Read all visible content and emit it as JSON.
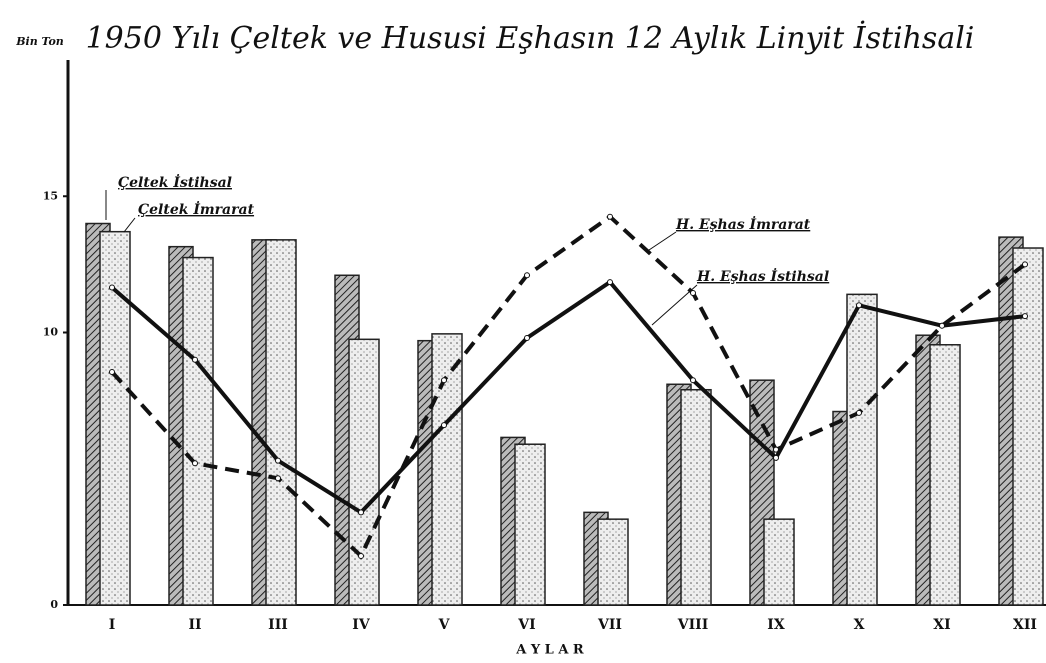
{
  "chart_data": {
    "type": "bar_line",
    "title": "1950 Yılı Çeltek ve Hususi Eşhasın 12 Aylık Linyit İstihsali",
    "y_label": "Bin Ton",
    "x_label": "A Y L A R",
    "categories": [
      "I",
      "II",
      "III",
      "IV",
      "V",
      "VI",
      "VII",
      "VIII",
      "IX",
      "X",
      "XI",
      "XII"
    ],
    "ylim": [
      0,
      20
    ],
    "yticks": [
      0,
      10,
      15
    ],
    "series": [
      {
        "name": "Çeltek İstihsal",
        "kind": "bar",
        "color": "#555",
        "values": [
          14.0,
          13.15,
          13.4,
          12.1,
          9.7,
          6.15,
          3.4,
          8.1,
          8.25,
          7.1,
          9.9,
          13.5
        ]
      },
      {
        "name": "Çeltek İmrarat",
        "kind": "bar",
        "color": "#ddd",
        "values": [
          13.7,
          12.75,
          13.4,
          9.75,
          9.95,
          5.9,
          3.15,
          7.9,
          3.15,
          11.4,
          9.55,
          13.1
        ]
      },
      {
        "name": "H. Eşhas İmrarat",
        "kind": "dashed",
        "color": "#111",
        "values": [
          8.55,
          5.2,
          4.65,
          1.8,
          8.25,
          12.1,
          14.25,
          11.45,
          5.7,
          7.05,
          10.25,
          12.5
        ]
      },
      {
        "name": "H. Eşhas İstihsal",
        "kind": "solid",
        "color": "#111",
        "values": [
          11.65,
          9.0,
          5.3,
          3.4,
          6.6,
          9.8,
          11.85,
          8.25,
          5.4,
          11.0,
          10.25,
          10.6
        ]
      }
    ]
  }
}
